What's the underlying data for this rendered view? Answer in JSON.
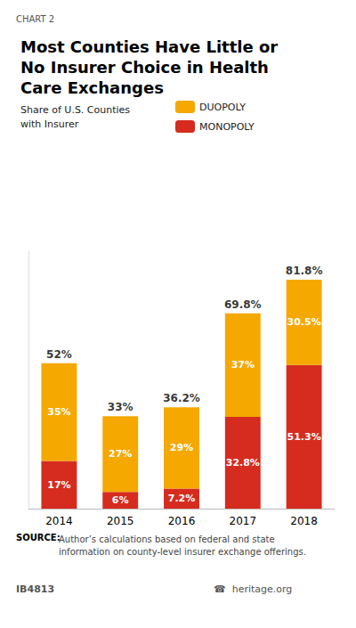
{
  "chart_data": {
    "type": "bar",
    "stacked": true,
    "chart_label": "CHART 2",
    "title": "Most Counties Have Little or\nNo Insurer Choice in Health\nCare Exchanges",
    "subtitle": "Share of U.S. Counties\nwith Insurer",
    "categories": [
      "2014",
      "2015",
      "2016",
      "2017",
      "2018"
    ],
    "series": [
      {
        "name": "MONOPOLY",
        "color": "#d62b1f",
        "values": [
          17,
          6,
          7.2,
          32.8,
          51.3
        ],
        "value_labels": [
          "17%",
          "6%",
          "7.2%",
          "32.8%",
          "51.3%"
        ]
      },
      {
        "name": "DUOPOLY",
        "color": "#f5a800",
        "values": [
          35,
          27,
          29,
          37,
          30.5
        ],
        "value_labels": [
          "35%",
          "27%",
          "29%",
          "37%",
          "30.5%"
        ]
      }
    ],
    "totals": [
      52,
      33,
      36.2,
      69.8,
      81.8
    ],
    "total_labels": [
      "52%",
      "33%",
      "36.2%",
      "69.8%",
      "81.8%"
    ],
    "data_labels": true,
    "ylim": [
      0,
      92
    ],
    "tick_labels": "x",
    "grid": false,
    "legend": "upper right",
    "source_label": "SOURCE:",
    "source_text": "Author’s calculations based on federal and state\ninformation on county-level insurer exchange offerings.",
    "footer_left": "IB4813",
    "footer_right": "☎  heritage.org"
  }
}
